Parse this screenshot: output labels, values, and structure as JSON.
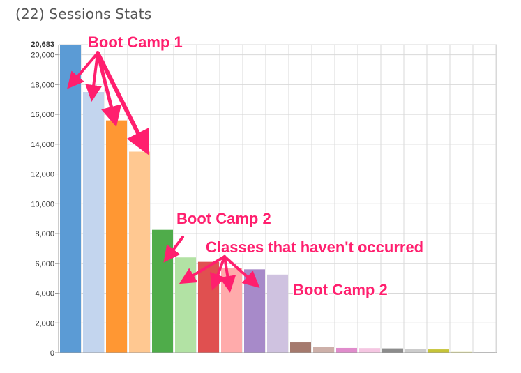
{
  "header": {
    "title": "(22) Sessions Stats"
  },
  "chart_data": {
    "type": "bar",
    "title": "(22) Sessions Stats",
    "xlabel": "",
    "ylabel": "",
    "ylim": [
      0,
      20683
    ],
    "y_ticks": [
      0,
      2000,
      4000,
      6000,
      8000,
      10000,
      12000,
      14000,
      16000,
      18000,
      20000
    ],
    "y_tick_labels": [
      "0",
      "2,000",
      "4,000",
      "6,000",
      "8,000",
      "10,000",
      "12,000",
      "14,000",
      "16,000",
      "18,000",
      "20,000"
    ],
    "y_max_label": "20,683",
    "grid": true,
    "values": [
      20683,
      17500,
      15600,
      13500,
      8250,
      6400,
      6100,
      5700,
      5600,
      5250,
      700,
      400,
      330,
      320,
      300,
      280,
      230,
      60,
      40
    ],
    "colors": [
      "#5b9bd5",
      "#c3d5ee",
      "#ff9733",
      "#ffc891",
      "#4fac4a",
      "#b2e2a4",
      "#e05050",
      "#ffabab",
      "#a78ac9",
      "#cfc2e0",
      "#a57a6e",
      "#cdb0a9",
      "#e08ccc",
      "#f5c6e2",
      "#8c8c8c",
      "#cccccc",
      "#c6c438",
      "#dddd99",
      "#cccccc"
    ],
    "annotations": [
      {
        "text": "Boot Camp 1"
      },
      {
        "text": "Boot Camp 2"
      },
      {
        "text": "Classes that haven't occurred"
      },
      {
        "text": "Boot Camp 2"
      }
    ],
    "annotation_color": "#ff1f6e"
  }
}
